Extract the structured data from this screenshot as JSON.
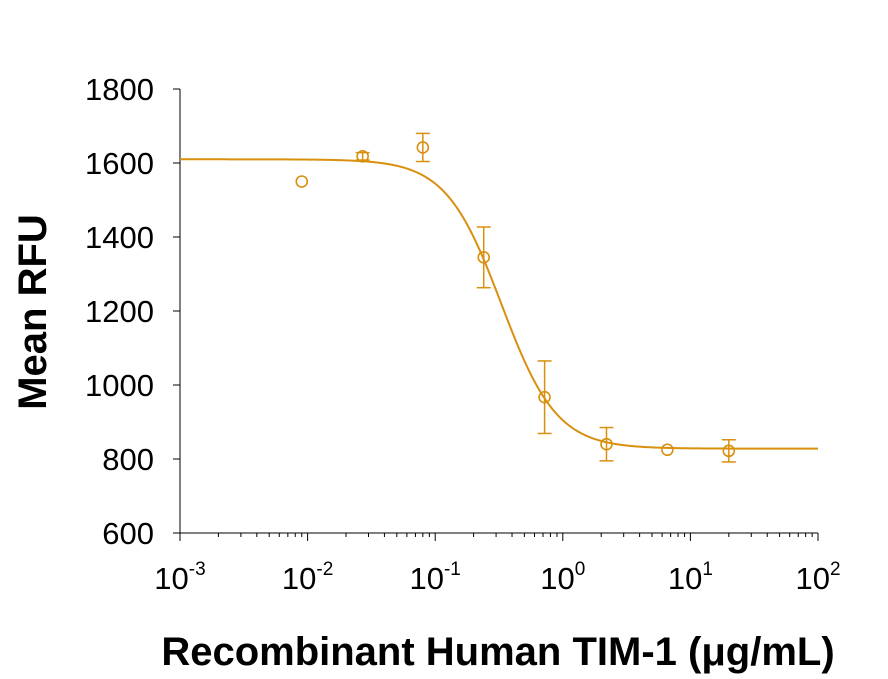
{
  "chart_data": {
    "type": "scatter",
    "xlabel": "Recombinant Human TIM-1 (μg/mL)",
    "ylabel": "Mean RFU",
    "x_scale": "log",
    "xlim": [
      0.001,
      100
    ],
    "ylim": [
      600,
      1800
    ],
    "y_ticks": [
      600,
      800,
      1000,
      1200,
      1400,
      1600,
      1800
    ],
    "x_tick_labels": [
      {
        "base": "10",
        "exp": "-3"
      },
      {
        "base": "10",
        "exp": "-2"
      },
      {
        "base": "10",
        "exp": "-1"
      },
      {
        "base": "10",
        "exp": "0"
      },
      {
        "base": "10",
        "exp": "1"
      },
      {
        "base": "10",
        "exp": "2"
      }
    ],
    "color": "#D9900E",
    "grid": false,
    "series": [
      {
        "points": [
          {
            "x": 0.009,
            "y": 1550,
            "err": 0
          },
          {
            "x": 0.027,
            "y": 1618,
            "err": 10
          },
          {
            "x": 0.08,
            "y": 1642,
            "err": 38
          },
          {
            "x": 0.24,
            "y": 1345,
            "err": 82
          },
          {
            "x": 0.72,
            "y": 967,
            "err": 98
          },
          {
            "x": 2.2,
            "y": 840,
            "err": 45
          },
          {
            "x": 6.6,
            "y": 825,
            "err": 0
          },
          {
            "x": 20,
            "y": 822,
            "err": 30
          }
        ]
      }
    ],
    "fit_curve": {
      "model": "4PL",
      "top": 1610,
      "bottom": 828,
      "ic50": 0.33,
      "hill": 2.0
    }
  }
}
